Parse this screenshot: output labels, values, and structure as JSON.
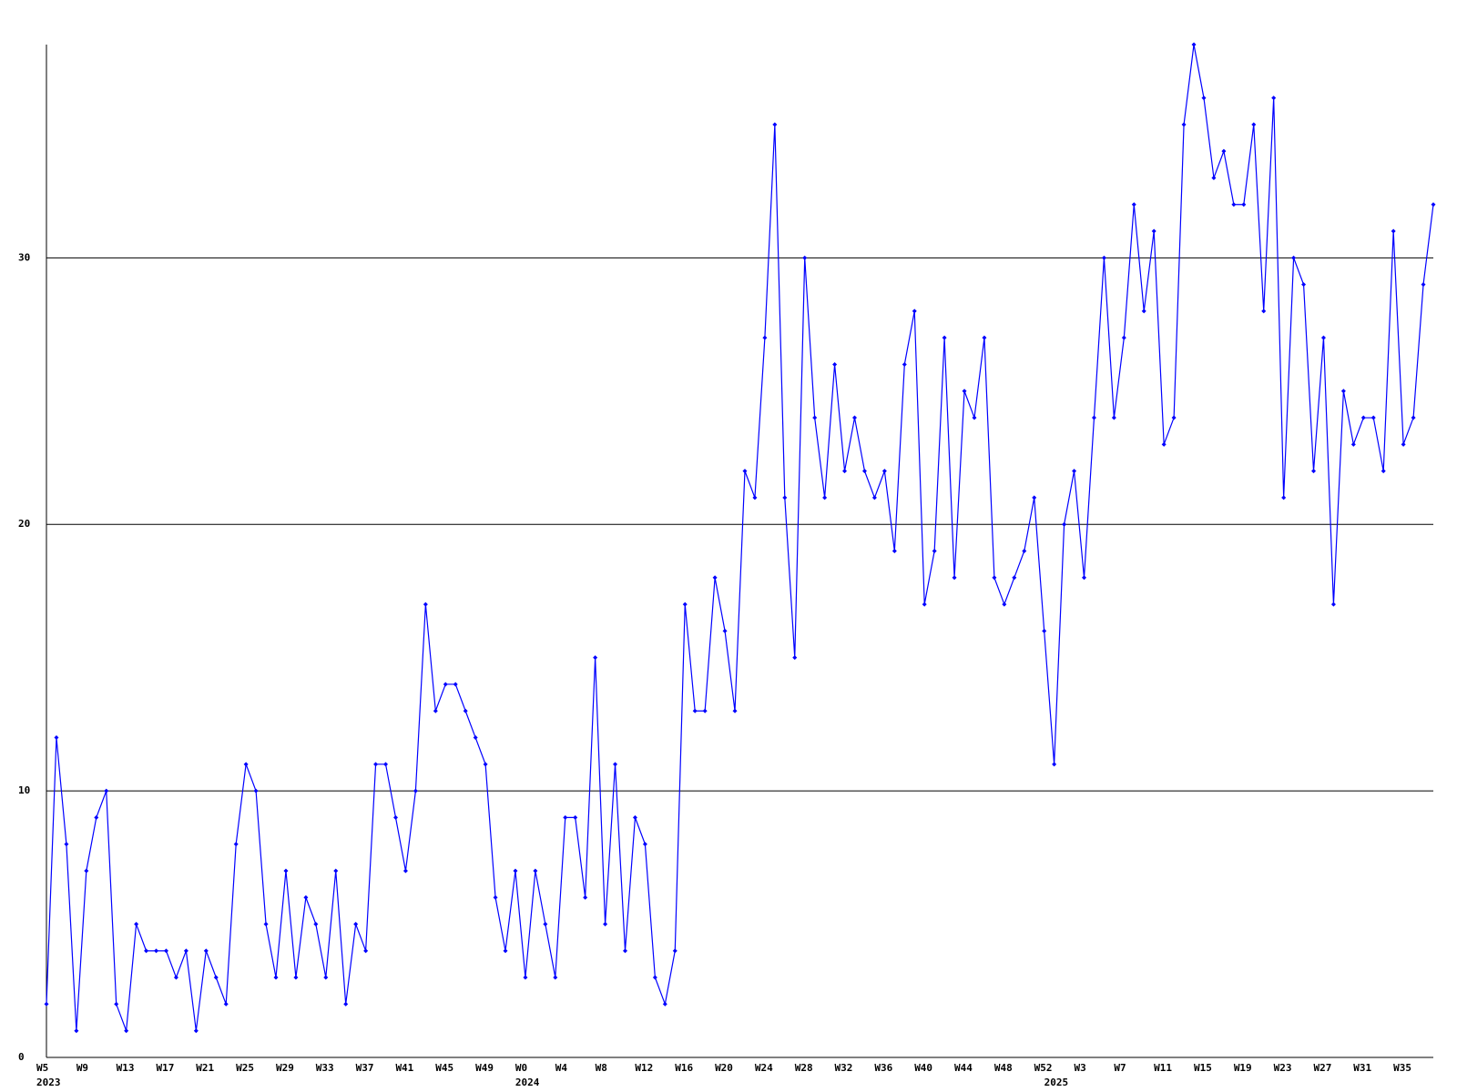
{
  "chart_data": {
    "type": "line",
    "categories": [
      "W5",
      null,
      null,
      null,
      "W9",
      null,
      null,
      null,
      "W13",
      null,
      null,
      null,
      "W17",
      null,
      null,
      null,
      "W21",
      null,
      null,
      null,
      "W25",
      null,
      null,
      null,
      "W29",
      null,
      null,
      null,
      "W33",
      null,
      null,
      null,
      "W37",
      null,
      null,
      null,
      "W41",
      null,
      null,
      null,
      "W45",
      null,
      null,
      null,
      "W49",
      null,
      null,
      null,
      "W0",
      null,
      null,
      null,
      "W4",
      null,
      null,
      null,
      "W8",
      null,
      null,
      null,
      "W12",
      null,
      null,
      null,
      "W16",
      null,
      null,
      null,
      "W20",
      null,
      null,
      null,
      "W24",
      null,
      null,
      null,
      "W28",
      null,
      null,
      null,
      "W32",
      null,
      null,
      null,
      "W36",
      null,
      null,
      null,
      "W40",
      null,
      null,
      null,
      "W44",
      null,
      null,
      null,
      "W48",
      null,
      null,
      null,
      "W52",
      null,
      null,
      null,
      "W3",
      null,
      null,
      null,
      "W7",
      null,
      null,
      null,
      "W11",
      null,
      null,
      null,
      "W15",
      null,
      null,
      null,
      "W19",
      null,
      null,
      null,
      "W23",
      null,
      null,
      null,
      "W27",
      null,
      null,
      null,
      "W31",
      null,
      null,
      null,
      "W35",
      null,
      null,
      null
    ],
    "years": [
      {
        "at": 0,
        "label": "2023"
      },
      {
        "at": 48,
        "label": "2024"
      },
      {
        "at": 101,
        "label": "2025"
      }
    ],
    "values": [
      2,
      12,
      8,
      1,
      7,
      9,
      10,
      2,
      1,
      5,
      4,
      4,
      4,
      3,
      4,
      1,
      4,
      3,
      2,
      8,
      11,
      10,
      5,
      3,
      7,
      3,
      6,
      5,
      3,
      7,
      2,
      5,
      4,
      11,
      11,
      9,
      7,
      10,
      17,
      13,
      14,
      14,
      13,
      12,
      11,
      6,
      4,
      7,
      3,
      7,
      5,
      3,
      9,
      9,
      6,
      15,
      5,
      11,
      4,
      9,
      8,
      3,
      2,
      4,
      17,
      13,
      13,
      18,
      16,
      13,
      22,
      21,
      27,
      35,
      21,
      15,
      30,
      24,
      21,
      26,
      22,
      24,
      22,
      21,
      22,
      19,
      26,
      28,
      17,
      19,
      27,
      18,
      25,
      24,
      27,
      18,
      17,
      18,
      19,
      21,
      16,
      11,
      20,
      22,
      18,
      24,
      30,
      24,
      27,
      32,
      28,
      31,
      23,
      24,
      35,
      38,
      36,
      33,
      34,
      32,
      32,
      35,
      28,
      36,
      21,
      30,
      29,
      22,
      27,
      17,
      25,
      23,
      24,
      24,
      22,
      31,
      23,
      24,
      29,
      32
    ],
    "color": "#0000ff",
    "ylim": [
      0,
      38
    ],
    "yticks": [
      0,
      10,
      20,
      30
    ],
    "grid": true
  }
}
